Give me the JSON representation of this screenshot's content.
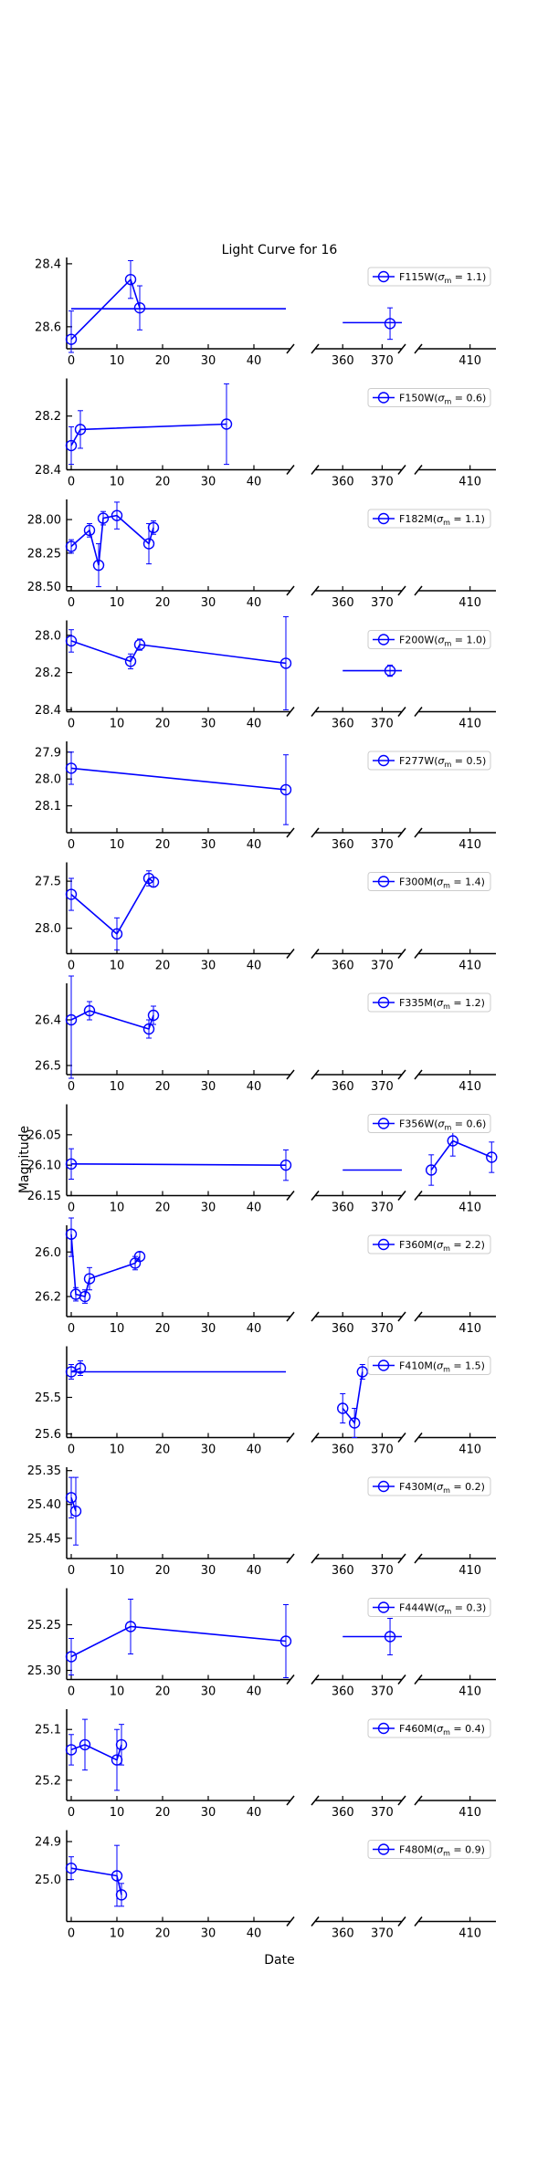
{
  "figure": {
    "title": "Light Curve for 16",
    "xlabel": "Date",
    "ylabel": "Magnitude"
  },
  "chart_data": {
    "type": "line",
    "title": "Light Curve for 16",
    "xlabel": "Date",
    "ylabel": "Magnitude",
    "y_inverted": true,
    "x_axis_broken": true,
    "x_segments": [
      {
        "range": [
          -1,
          48
        ],
        "ticks": [
          0,
          10,
          20,
          30,
          40
        ]
      },
      {
        "range": [
          353,
          375
        ],
        "ticks": [
          360,
          370
        ]
      },
      {
        "range": [
          398,
          416
        ],
        "ticks": [
          410
        ]
      }
    ],
    "line_color": "#0000ff",
    "legend_location": "upper right",
    "panels": [
      {
        "name": "F115W",
        "sigma": "1.1",
        "ylim": [
          28.38,
          28.67
        ],
        "yticks": [
          "28.4",
          "28.6"
        ],
        "points": [
          {
            "x": 0,
            "y": 28.64,
            "err": 0.09
          },
          {
            "x": 13,
            "y": 28.45,
            "err": 0.06
          },
          {
            "x": 15,
            "y": 28.54,
            "err": 0.07
          },
          {
            "x": 372,
            "y": 28.59,
            "err": 0.05
          }
        ],
        "gap_lines": [
          [
            0,
            47,
            28.543
          ],
          [
            360,
            375,
            28.587
          ]
        ]
      },
      {
        "name": "F150W",
        "sigma": "0.6",
        "ylim": [
          28.06,
          28.4
        ],
        "yticks": [
          "28.2",
          "28.4"
        ],
        "points": [
          {
            "x": 0,
            "y": 28.31,
            "err": 0.07
          },
          {
            "x": 2,
            "y": 28.25,
            "err": 0.07
          },
          {
            "x": 34,
            "y": 28.23,
            "err": 0.15
          }
        ],
        "gap_lines": []
      },
      {
        "name": "F182M",
        "sigma": "1.1",
        "ylim": [
          27.85,
          28.53
        ],
        "yticks": [
          "28.00",
          "28.25",
          "28.50"
        ],
        "points": [
          {
            "x": 0,
            "y": 28.2,
            "err": 0.05
          },
          {
            "x": 4,
            "y": 28.08,
            "err": 0.05
          },
          {
            "x": 6,
            "y": 28.34,
            "err": 0.16
          },
          {
            "x": 7,
            "y": 27.99,
            "err": 0.05
          },
          {
            "x": 10,
            "y": 27.97,
            "err": 0.1
          },
          {
            "x": 17,
            "y": 28.18,
            "err": 0.15
          },
          {
            "x": 18,
            "y": 28.06,
            "err": 0.05
          }
        ],
        "gap_lines": []
      },
      {
        "name": "F200W",
        "sigma": "1.0",
        "ylim": [
          27.92,
          28.41
        ],
        "yticks": [
          "28.0",
          "28.2",
          "28.4"
        ],
        "points": [
          {
            "x": 0,
            "y": 28.03,
            "err": 0.06
          },
          {
            "x": 13,
            "y": 28.14,
            "err": 0.04
          },
          {
            "x": 15,
            "y": 28.05,
            "err": 0.03
          },
          {
            "x": 47,
            "y": 28.15,
            "err": 0.25
          },
          {
            "x": 372,
            "y": 28.19,
            "err": 0.03
          }
        ],
        "gap_lines": [
          [
            360,
            375,
            28.19
          ]
        ]
      },
      {
        "name": "F277W",
        "sigma": "0.5",
        "ylim": [
          27.86,
          28.2
        ],
        "yticks": [
          "27.9",
          "28.0",
          "28.1"
        ],
        "points": [
          {
            "x": 0,
            "y": 27.96,
            "err": 0.06
          },
          {
            "x": 47,
            "y": 28.04,
            "err": 0.13
          }
        ],
        "gap_lines": []
      },
      {
        "name": "F300M",
        "sigma": "1.4",
        "ylim": [
          27.3,
          28.27
        ],
        "yticks": [
          "27.5",
          "28.0"
        ],
        "points": [
          {
            "x": 0,
            "y": 27.64,
            "err": 0.17
          },
          {
            "x": 10,
            "y": 28.06,
            "err": 0.17
          },
          {
            "x": 17,
            "y": 27.47,
            "err": 0.08
          },
          {
            "x": 18,
            "y": 27.51,
            "err": 0.05
          }
        ],
        "gap_lines": []
      },
      {
        "name": "F335M",
        "sigma": "1.2",
        "ylim": [
          26.32,
          26.52
        ],
        "yticks": [
          "26.4",
          "26.5"
        ],
        "points": [
          {
            "x": 0,
            "y": 26.4,
            "err": 0.13
          },
          {
            "x": 4,
            "y": 26.38,
            "err": 0.02
          },
          {
            "x": 17,
            "y": 26.42,
            "err": 0.02
          },
          {
            "x": 18,
            "y": 26.39,
            "err": 0.02
          }
        ],
        "gap_lines": []
      },
      {
        "name": "F356W",
        "sigma": "0.6",
        "ylim": [
          26.0,
          26.15
        ],
        "yticks": [
          "26.05",
          "26.10",
          "26.15"
        ],
        "points": [
          {
            "x": 0,
            "y": 26.098,
            "err": 0.025
          },
          {
            "x": 47,
            "y": 26.1,
            "err": 0.025
          },
          {
            "x": 401,
            "y": 26.108,
            "err": 0.025
          },
          {
            "x": 406,
            "y": 26.06,
            "err": 0.025
          },
          {
            "x": 415,
            "y": 26.087,
            "err": 0.025
          }
        ],
        "gap_lines": [
          [
            360,
            375,
            26.108
          ]
        ]
      },
      {
        "name": "F360M",
        "sigma": "2.2",
        "ylim": [
          25.88,
          26.29
        ],
        "yticks": [
          "26.0",
          "26.2"
        ],
        "points": [
          {
            "x": 0,
            "y": 25.92,
            "err": 0.1
          },
          {
            "x": 1,
            "y": 26.19,
            "err": 0.03
          },
          {
            "x": 3,
            "y": 26.2,
            "err": 0.03
          },
          {
            "x": 4,
            "y": 26.12,
            "err": 0.05
          },
          {
            "x": 14,
            "y": 26.05,
            "err": 0.03
          },
          {
            "x": 15,
            "y": 26.02,
            "err": 0.02
          }
        ],
        "gap_lines": []
      },
      {
        "name": "F410M",
        "sigma": "1.5",
        "ylim": [
          25.36,
          25.61
        ],
        "yticks": [
          "25.5",
          "25.6"
        ],
        "points": [
          {
            "x": 0,
            "y": 25.43,
            "err": 0.02
          },
          {
            "x": 2,
            "y": 25.42,
            "err": 0.02
          },
          {
            "x": 360,
            "y": 25.53,
            "err": 0.04
          },
          {
            "x": 363,
            "y": 25.57,
            "err": 0.04
          },
          {
            "x": 365,
            "y": 25.43,
            "err": 0.02
          }
        ],
        "gap_lines": [
          [
            0,
            47,
            25.43
          ]
        ]
      },
      {
        "name": "F430M",
        "sigma": "0.2",
        "ylim": [
          25.345,
          25.48
        ],
        "yticks": [
          "25.35",
          "25.40",
          "25.45"
        ],
        "points": [
          {
            "x": 0,
            "y": 25.39,
            "err": 0.03
          },
          {
            "x": 1,
            "y": 25.41,
            "err": 0.05
          }
        ],
        "gap_lines": []
      },
      {
        "name": "F444W",
        "sigma": "0.3",
        "ylim": [
          25.21,
          25.31
        ],
        "yticks": [
          "25.25",
          "25.30"
        ],
        "points": [
          {
            "x": 0,
            "y": 25.285,
            "err": 0.02
          },
          {
            "x": 13,
            "y": 25.252,
            "err": 0.03
          },
          {
            "x": 47,
            "y": 25.268,
            "err": 0.04
          },
          {
            "x": 372,
            "y": 25.263,
            "err": 0.02
          }
        ],
        "gap_lines": [
          [
            360,
            375,
            25.263
          ]
        ]
      },
      {
        "name": "F460M",
        "sigma": "0.4",
        "ylim": [
          25.06,
          25.24
        ],
        "yticks": [
          "25.1",
          "25.2"
        ],
        "points": [
          {
            "x": 0,
            "y": 25.14,
            "err": 0.03
          },
          {
            "x": 3,
            "y": 25.13,
            "err": 0.05
          },
          {
            "x": 10,
            "y": 25.16,
            "err": 0.06
          },
          {
            "x": 11,
            "y": 25.13,
            "err": 0.04
          }
        ],
        "gap_lines": []
      },
      {
        "name": "F480M",
        "sigma": "0.9",
        "ylim": [
          24.87,
          25.11
        ],
        "yticks": [
          "24.9",
          "25.0"
        ],
        "points": [
          {
            "x": 0,
            "y": 24.97,
            "err": 0.03
          },
          {
            "x": 10,
            "y": 24.99,
            "err": 0.08
          },
          {
            "x": 11,
            "y": 25.04,
            "err": 0.03
          }
        ],
        "gap_lines": []
      }
    ]
  }
}
